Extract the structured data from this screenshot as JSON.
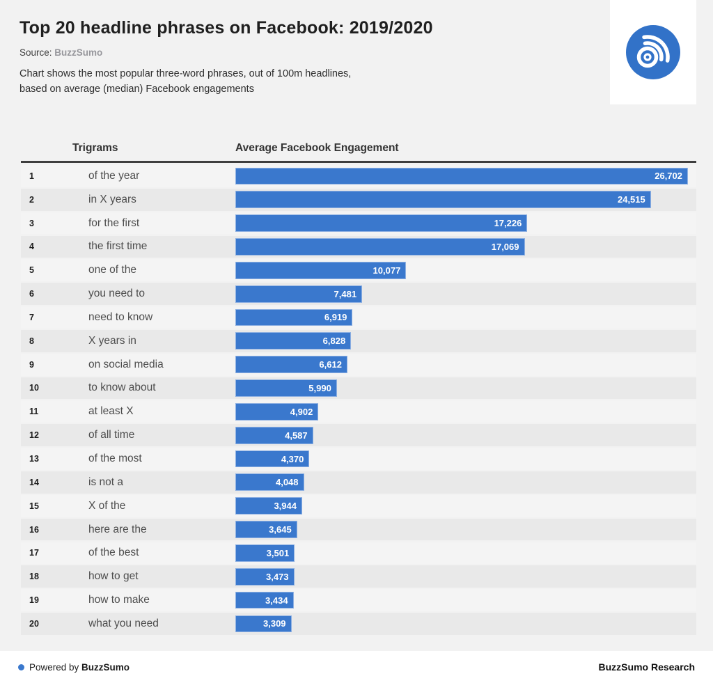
{
  "page": {
    "title": "Top 20 headline phrases on Facebook: 2019/2020",
    "source_label": "Source: ",
    "source_name": "BuzzSumo",
    "description_line1": "Chart shows the most popular three-word phrases, out of 100m headlines,",
    "description_line2": "based on average (median) Facebook engagements"
  },
  "table_header": {
    "trigrams": "Trigrams",
    "engagement": "Average Facebook Engagement"
  },
  "chart_data": {
    "type": "bar",
    "orientation": "horizontal",
    "title": "Top 20 headline phrases on Facebook: 2019/2020",
    "xlabel": "Average Facebook Engagement",
    "ylabel": "Trigrams",
    "xlim": [
      0,
      26702
    ],
    "grid": false,
    "legend": false,
    "bar_color": "#3a78cd",
    "ranks": [
      "1",
      "2",
      "3",
      "4",
      "5",
      "6",
      "7",
      "8",
      "9",
      "10",
      "11",
      "12",
      "13",
      "14",
      "15",
      "16",
      "17",
      "18",
      "19",
      "20"
    ],
    "categories": [
      "of the year",
      "in X years",
      "for the first",
      "the first time",
      "one of the",
      "you need to",
      "need to know",
      "X years in",
      "on social media",
      "to know about",
      "at least X",
      "of all time",
      "of the most",
      "is not a",
      "X of the",
      "here are the",
      "of the best",
      "how to get",
      "how to make",
      "what you need"
    ],
    "values": [
      26702,
      24515,
      17226,
      17069,
      10077,
      7481,
      6919,
      6828,
      6612,
      5990,
      4902,
      4587,
      4370,
      4048,
      3944,
      3645,
      3501,
      3473,
      3434,
      3309
    ],
    "value_labels": [
      "26,702",
      "24,515",
      "17,226",
      "17,069",
      "10,077",
      "7,481",
      "6,919",
      "6,828",
      "6,612",
      "5,990",
      "4,902",
      "4,587",
      "4,370",
      "4,048",
      "3,944",
      "3,645",
      "3,501",
      "3,473",
      "3,434",
      "3,309"
    ]
  },
  "footer": {
    "powered_prefix": "Powered by ",
    "powered_brand": "BuzzSumo",
    "research_label": "BuzzSumo Research"
  },
  "colors": {
    "page_background": "#f2f2f2",
    "row_light": "#f4f4f4",
    "row_dark": "#e9e9e9",
    "bar_blue": "#3a78cd",
    "logo_blue": "#3272c8",
    "header_rule": "#3e3e3e",
    "footer_background": "#ffffff"
  }
}
